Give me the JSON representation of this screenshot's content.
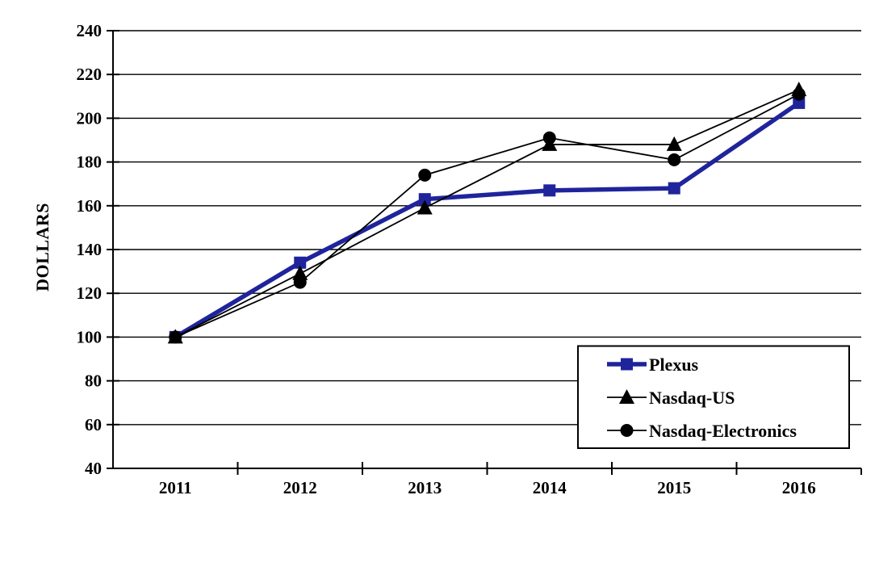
{
  "chart_data": {
    "type": "line",
    "ylabel": "DOLLARS",
    "categories": [
      "2011",
      "2012",
      "2013",
      "2014",
      "2015",
      "2016"
    ],
    "y_ticks": [
      40,
      60,
      80,
      100,
      120,
      140,
      160,
      180,
      200,
      220,
      240
    ],
    "ylim": [
      40,
      240
    ],
    "grid": "horizontal",
    "legend_position": "inside-bottom-right",
    "axis_color": "#000000",
    "background_color": "#ffffff",
    "series": [
      {
        "name": "Plexus",
        "marker": "square",
        "color": "#1F249C",
        "line_width": 5.5,
        "values": [
          100,
          134,
          163,
          167,
          168,
          207
        ]
      },
      {
        "name": "Nasdaq-US",
        "marker": "triangle",
        "color": "#000000",
        "line_width": 1.8,
        "values": [
          100,
          129,
          159,
          188,
          188,
          213
        ]
      },
      {
        "name": "Nasdaq-Electronics",
        "marker": "circle",
        "color": "#000000",
        "line_width": 1.8,
        "values": [
          100,
          125,
          174,
          191,
          181,
          211
        ]
      }
    ]
  }
}
